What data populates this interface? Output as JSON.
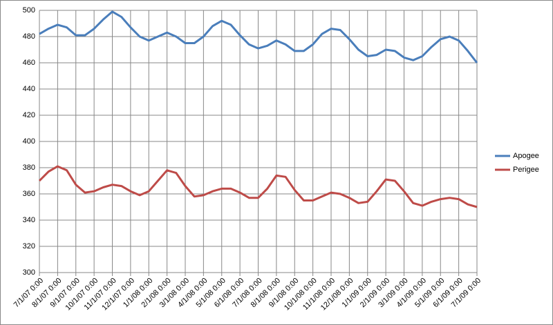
{
  "chart_data": {
    "type": "line",
    "categories": [
      "7/1/07 0:00",
      null,
      "8/1/07 0:00",
      null,
      "9/1/07 0:00",
      null,
      "10/1/07 0:00",
      null,
      "11/1/07 0:00",
      null,
      "12/1/07 0:00",
      null,
      "1/1/08 0:00",
      null,
      "2/1/08 0:00",
      null,
      "3/1/08 0:00",
      null,
      "4/1/08 0:00",
      null,
      "5/1/08 0:00",
      null,
      "6/1/08 0:00",
      null,
      "7/1/08 0:00",
      null,
      "8/1/08 0:00",
      null,
      "9/1/08 0:00",
      null,
      "10/1/08 0:00",
      null,
      "11/1/08 0:00",
      null,
      "12/1/08 0:00",
      null,
      "1/1/09 0:00",
      null,
      "2/1/09 0:00",
      null,
      "3/1/09 0:00",
      null,
      "4/1/09 0:00",
      null,
      "5/1/09 0:00",
      null,
      "6/1/09 0:00",
      null,
      "7/1/09 0:00"
    ],
    "series": [
      {
        "name": "Apogee",
        "color": "#4a7ebb",
        "values": [
          482,
          486,
          489,
          487,
          481,
          481,
          486,
          493,
          499,
          495,
          487,
          480,
          477,
          480,
          483,
          480,
          475,
          475,
          480,
          488,
          492,
          489,
          481,
          474,
          471,
          473,
          477,
          474,
          469,
          469,
          474,
          482,
          486,
          485,
          478,
          470,
          465,
          466,
          470,
          469,
          464,
          462,
          465,
          472,
          478,
          480,
          477,
          469,
          460
        ]
      },
      {
        "name": "Perigee",
        "color": "#be4b48",
        "values": [
          370,
          377,
          381,
          378,
          367,
          361,
          362,
          365,
          367,
          366,
          362,
          359,
          362,
          370,
          378,
          376,
          366,
          358,
          359,
          362,
          364,
          364,
          361,
          357,
          357,
          364,
          374,
          373,
          363,
          355,
          355,
          358,
          361,
          360,
          357,
          353,
          354,
          362,
          371,
          370,
          362,
          353,
          351,
          354,
          356,
          357,
          356,
          352,
          350
        ]
      }
    ],
    "ylim": [
      300,
      500
    ],
    "yticks": [
      300,
      320,
      340,
      360,
      380,
      400,
      420,
      440,
      460,
      480,
      500
    ],
    "grid": true,
    "legend": "right"
  }
}
